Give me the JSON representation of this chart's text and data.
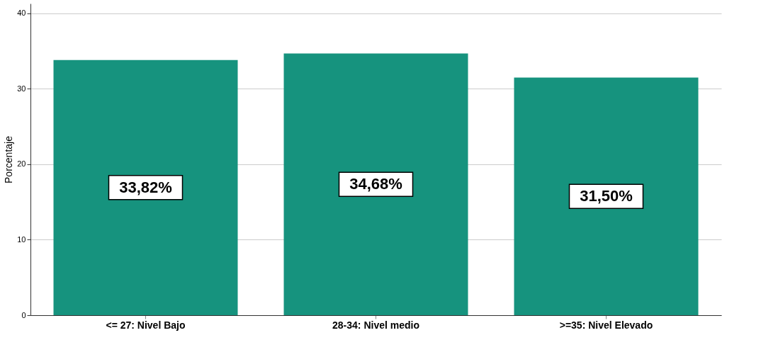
{
  "chart_data": {
    "type": "bar",
    "ylabel": "Porcentaje",
    "categories": [
      "<= 27: Nivel Bajo",
      "28-34: Nivel medio",
      ">=35: Nivel Elevado"
    ],
    "values": [
      33.82,
      34.68,
      31.5
    ],
    "value_labels": [
      "33,82%",
      "34,68%",
      "31,50%"
    ],
    "color": "#16937e",
    "ylim": [
      0,
      41.3
    ],
    "yticks": [
      0,
      10,
      20,
      30,
      40
    ],
    "grid": "y"
  }
}
